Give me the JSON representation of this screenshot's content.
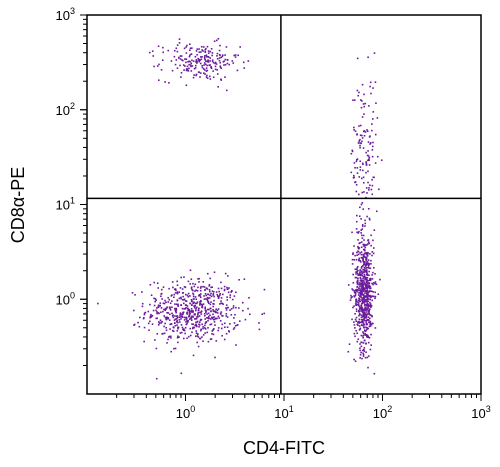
{
  "chart_data": {
    "type": "scatter",
    "xlabel": "CD4-FITC",
    "ylabel": "CD8α-PE",
    "x_scale": "log",
    "y_scale": "log",
    "xlim": [
      0.1,
      1000
    ],
    "ylim": [
      0.1,
      1000
    ],
    "x_ticks": [
      {
        "value": 1,
        "base": "10",
        "exp": "0"
      },
      {
        "value": 10,
        "base": "10",
        "exp": "1"
      },
      {
        "value": 100,
        "base": "10",
        "exp": "2"
      },
      {
        "value": 1000,
        "base": "10",
        "exp": "3"
      }
    ],
    "y_ticks": [
      {
        "value": 1,
        "base": "10",
        "exp": "0"
      },
      {
        "value": 10,
        "base": "10",
        "exp": "1"
      },
      {
        "value": 100,
        "base": "10",
        "exp": "2"
      },
      {
        "value": 1000,
        "base": "10",
        "exp": "3"
      }
    ],
    "quadrant_gate": {
      "x": 9.3,
      "y": 11.6
    },
    "point_color": "#6a1b9a",
    "clusters": [
      {
        "center_x": 1.2,
        "center_y": 0.75,
        "spread_x": 0.24,
        "spread_y": 0.17,
        "count": 640
      },
      {
        "center_x": 1.4,
        "center_y": 320,
        "spread_x": 0.2,
        "spread_y": 0.1,
        "count": 220
      },
      {
        "center_x": 65,
        "center_y": 1.2,
        "spread_x": 0.05,
        "spread_y": 0.3,
        "count": 680
      },
      {
        "center_x": 65,
        "center_y": 30,
        "spread_x": 0.07,
        "spread_y": 0.45,
        "count": 150
      }
    ],
    "grid": false,
    "legend": "none"
  }
}
